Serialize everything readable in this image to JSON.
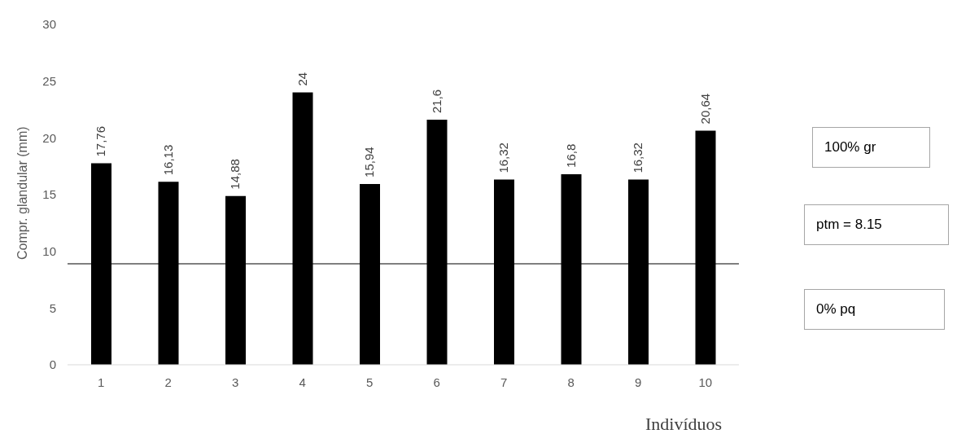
{
  "chart_data": {
    "type": "bar",
    "ylabel": "Compr. glandular (mm)",
    "xlabel": "Indivíduos",
    "categories": [
      "1",
      "2",
      "3",
      "4",
      "5",
      "6",
      "7",
      "8",
      "9",
      "10"
    ],
    "values": [
      17.76,
      16.13,
      14.88,
      24,
      15.94,
      21.6,
      16.32,
      16.8,
      16.32,
      20.64
    ],
    "value_labels": [
      "17,76",
      "16,13",
      "14,88",
      "24",
      "15,94",
      "21,6",
      "16,32",
      "16,8",
      "16,32",
      "20,64"
    ],
    "color": "#000000",
    "ylim": [
      0,
      30
    ],
    "yticks": [
      0,
      5,
      10,
      15,
      20,
      25,
      30
    ],
    "grid": false,
    "legend": false,
    "ref_lines": [
      {
        "axis": "y",
        "value": 8.9,
        "color": "#000000"
      }
    ],
    "annotations": [
      "100% gr",
      "ptm = 8.15",
      "0% pq"
    ]
  }
}
